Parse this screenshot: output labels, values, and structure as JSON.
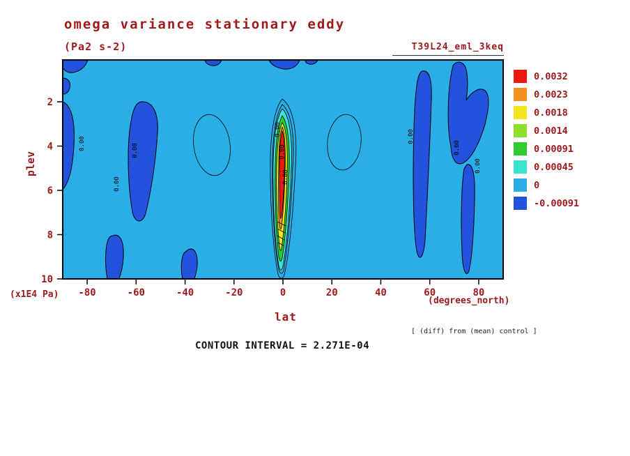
{
  "title": "omega variance stationary eddy",
  "subtitle": "(Pa2 s-2)",
  "experiment_tag": "T39L24_eml_3keq",
  "footer": {
    "contour_interval_text": "CONTOUR INTERVAL = 2.271E-04",
    "diff_note": "[ (diff) from (mean) control ]"
  },
  "axes": {
    "x_label": "lat",
    "x_unit": "(degrees_north)",
    "y_label": "plev",
    "y_unit": "(x1E4 Pa)"
  },
  "chart_data": {
    "type": "contour",
    "title": "omega variance stationary eddy",
    "units": "Pa2 s-2",
    "x_range": [
      -90,
      90
    ],
    "y_range": [
      0,
      10
    ],
    "x_tick_labels": [
      "-80",
      "-60",
      "-40",
      "-20",
      "0",
      "20",
      "40",
      "60",
      "80"
    ],
    "y_tick_labels": [
      "2",
      "4",
      "6",
      "8",
      "10"
    ],
    "contour_interval": "2.271E-04",
    "contour_line_label": "0.00",
    "levels": [
      0.0032,
      0.0023,
      0.0018,
      0.0014,
      0.00091,
      0.00045,
      0,
      -0.00091
    ],
    "legend": [
      {
        "label": "0.0032",
        "color": "#ed1a11"
      },
      {
        "label": "0.0023",
        "color": "#f59120"
      },
      {
        "label": "0.0018",
        "color": "#f2e71e"
      },
      {
        "label": "0.0014",
        "color": "#8ce02b"
      },
      {
        "label": "0.00091",
        "color": "#2ecc2e"
      },
      {
        "label": "0.00045",
        "color": "#3ce3d2"
      },
      {
        "label": "0",
        "color": "#2aaee8"
      },
      {
        "label": "-0.00091",
        "color": "#2353dd"
      }
    ],
    "features": [
      {
        "region": "lat ~0, plev 2-9",
        "value": "strong positive maximum, core > 0.0032"
      },
      {
        "region": "lat ~-60, plev 2-7",
        "value": "negative region < -0.00091"
      },
      {
        "region": "lat 55-85",
        "value": "negative columns < -0.00091"
      },
      {
        "region": "background field",
        "value": "near zero (0 to 0.00045)"
      }
    ]
  },
  "colors": {
    "field": "#2aaee8",
    "negative": "#2353dd",
    "text": "#9e1a1a",
    "frame": "#000000"
  }
}
